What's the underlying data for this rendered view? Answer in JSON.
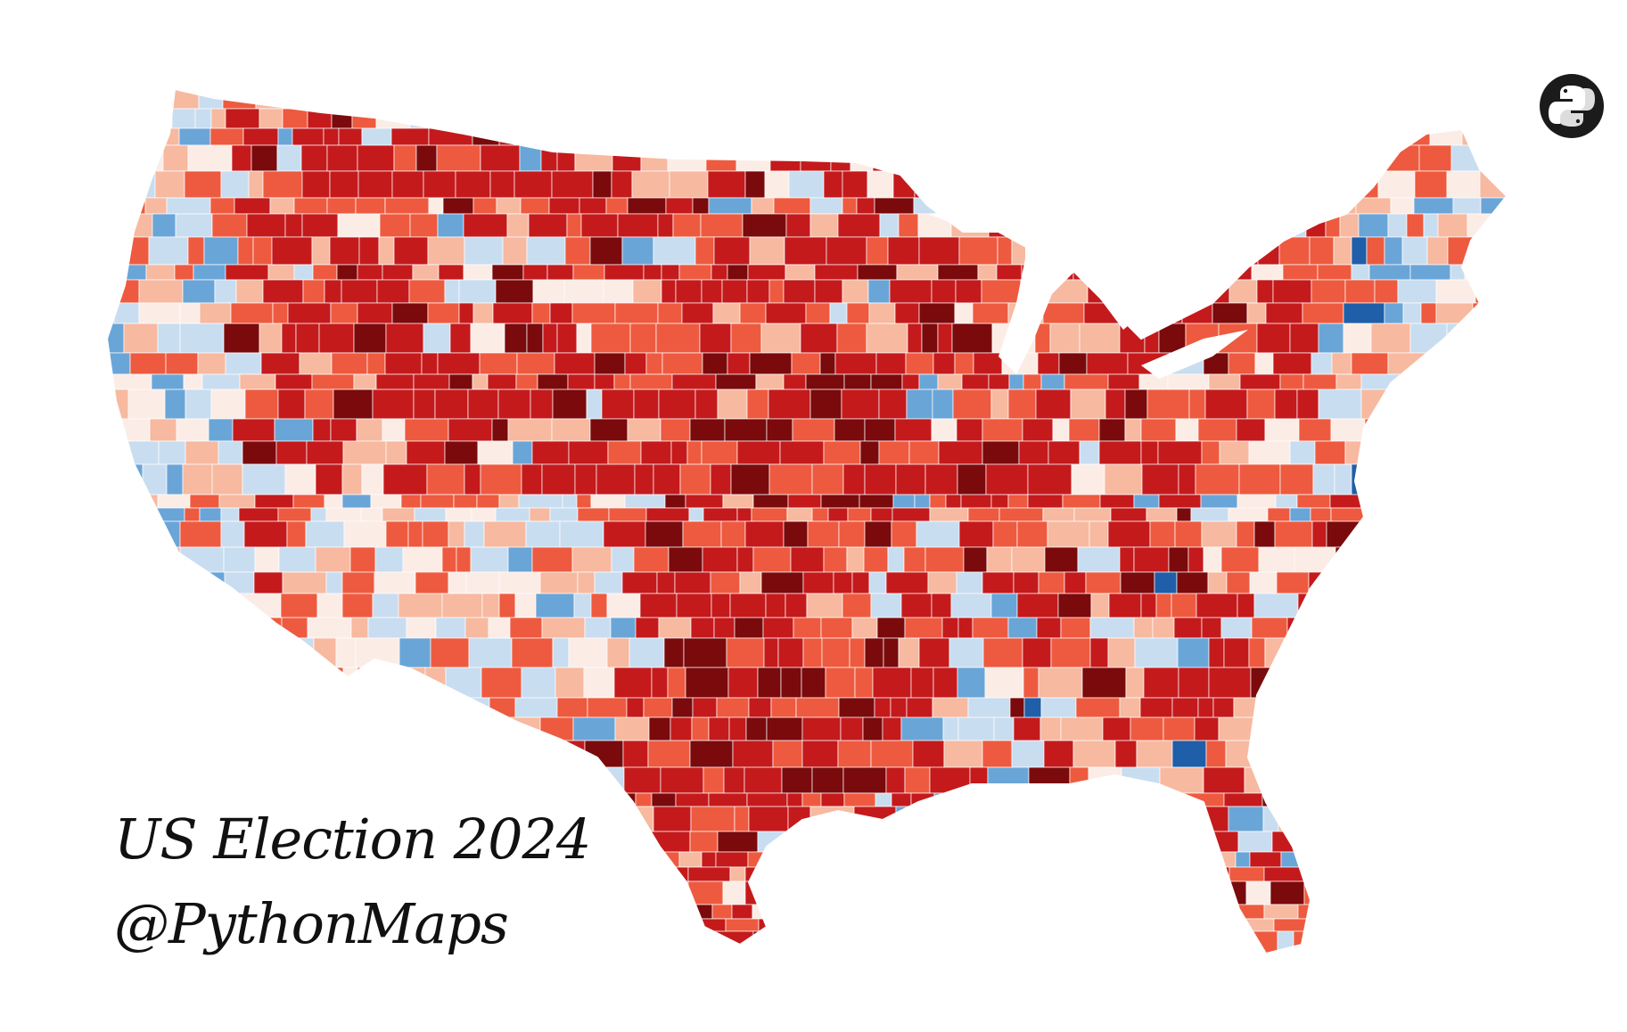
{
  "title": "US Election 2024",
  "handle": "@PythonMaps",
  "logo": {
    "icon": "python-logo-icon"
  },
  "map": {
    "type": "choropleth",
    "region": "contiguous United States",
    "unit": "county",
    "color_scale": {
      "dem_strong": "#1f5ea8",
      "dem_mid": "#6aa5d8",
      "dem_light": "#c9ddf0",
      "neutral": "#fbece6",
      "rep_light": "#f7b9a0",
      "rep_mid": "#ee5a3f",
      "rep_strong": "#c41a1c",
      "rep_darkest": "#7a0a0c"
    },
    "border_color": "#ffffff"
  }
}
